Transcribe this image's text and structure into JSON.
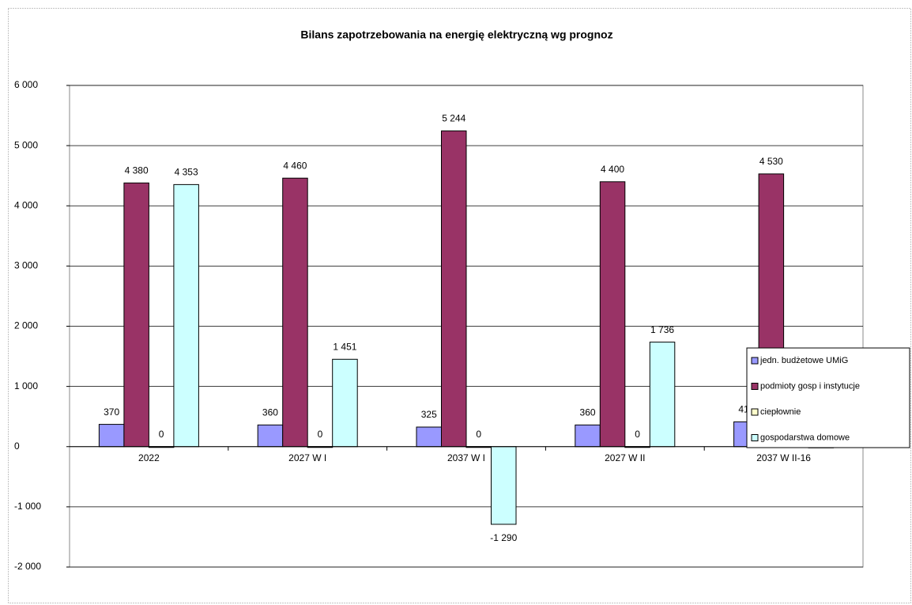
{
  "chart_data": {
    "type": "bar",
    "title": "Bilans zapotrzebowania na energię elektryczną wg prognoz",
    "categories": [
      "2022",
      "2027 W I",
      "2037 W I",
      "2027 W II",
      "2037 W II-16"
    ],
    "series": [
      {
        "name": "jedn. budżetowe UMiG",
        "color": "#9999ff",
        "values": [
          370,
          360,
          325,
          360,
          412
        ],
        "value_labels": [
          "370",
          "360",
          "325",
          "360",
          "412"
        ]
      },
      {
        "name": "podmioty gosp i instytucje",
        "color": "#993366",
        "values": [
          4380,
          4460,
          5244,
          4400,
          4530
        ],
        "value_labels": [
          "4 380",
          "4 460",
          "5 244",
          "4 400",
          "4 530"
        ]
      },
      {
        "name": "ciepłownie",
        "color": "#ffffcc",
        "values": [
          0,
          0,
          0,
          0,
          0
        ],
        "value_labels": [
          "0",
          "0",
          "0",
          "0",
          "0"
        ]
      },
      {
        "name": "gospodarstwa domowe",
        "color": "#ccffff",
        "values": [
          4353,
          1451,
          -1290,
          1736,
          -20
        ],
        "value_labels": [
          "4 353",
          "1 451",
          "-1 290",
          "1 736",
          null
        ]
      }
    ],
    "ylim": [
      -2000,
      6000
    ],
    "yticks": [
      {
        "value": -2000,
        "label": "-2 000"
      },
      {
        "value": -1000,
        "label": "-1 000"
      },
      0,
      {
        "value": 1000,
        "label": "1 000"
      },
      {
        "value": 2000,
        "label": "2 000"
      },
      {
        "value": 3000,
        "label": "3 000"
      },
      {
        "value": 4000,
        "label": "4 000"
      },
      {
        "value": 5000,
        "label": "5 000"
      },
      {
        "value": 6000,
        "label": "6 000"
      }
    ],
    "grid": true,
    "legend": "right"
  }
}
